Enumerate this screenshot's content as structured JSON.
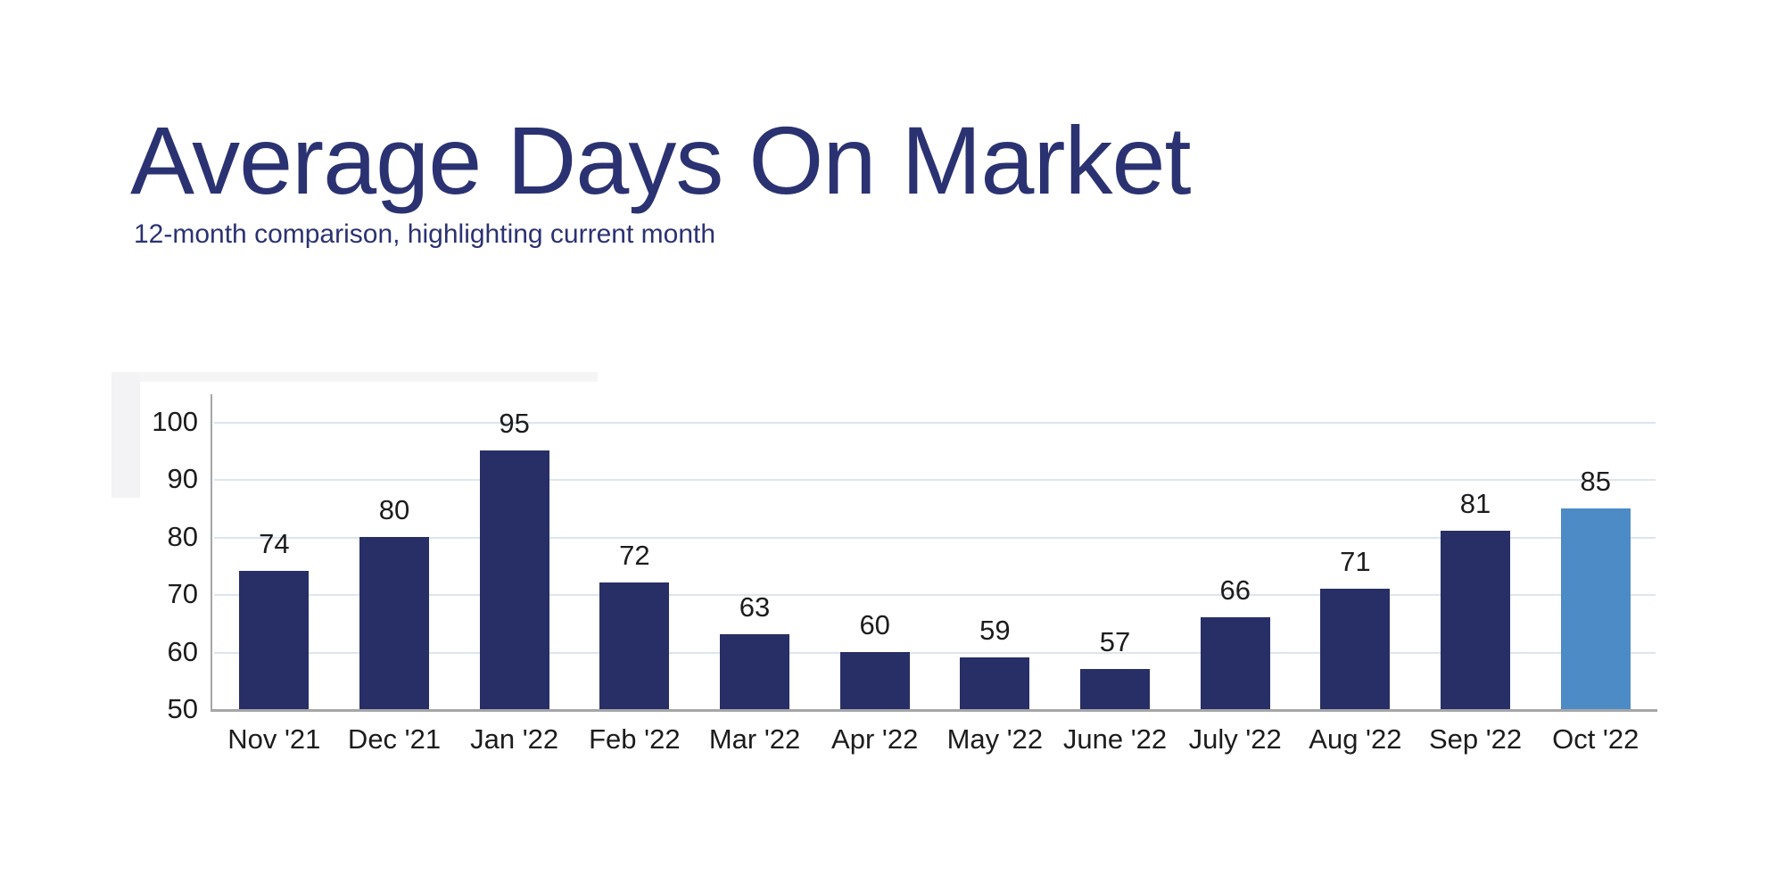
{
  "page": {
    "background": "#ffffff",
    "backdrop_color": "#f4f4f6"
  },
  "header": {
    "title": "Average Days On Market",
    "subtitle": "12-month comparison, highlighting current month"
  },
  "chart_data": {
    "type": "bar",
    "title": "Average Days On Market",
    "subtitle": "12-month comparison, highlighting current month",
    "categories": [
      "Nov '21",
      "Dec '21",
      "Jan '22",
      "Feb '22",
      "Mar '22",
      "Apr '22",
      "May '22",
      "June '22",
      "July '22",
      "Aug '22",
      "Sep '22",
      "Oct '22"
    ],
    "values": [
      74,
      80,
      95,
      72,
      63,
      60,
      59,
      57,
      66,
      71,
      81,
      85
    ],
    "highlight_index": 11,
    "highlighted_category": "Oct '22",
    "xlabel": "",
    "ylabel": "",
    "ylim": [
      50,
      100
    ],
    "yticks": [
      50,
      60,
      70,
      80,
      90,
      100
    ],
    "grid": true,
    "legend": "none",
    "data_labels": true,
    "bar_color": "#272f66",
    "highlight_color": "#4d8bc7",
    "gridline_color": "#dde5ef",
    "axis_color": "#a6a6a6",
    "text_color": "#1c1c1c",
    "title_color": "#2b3272"
  }
}
